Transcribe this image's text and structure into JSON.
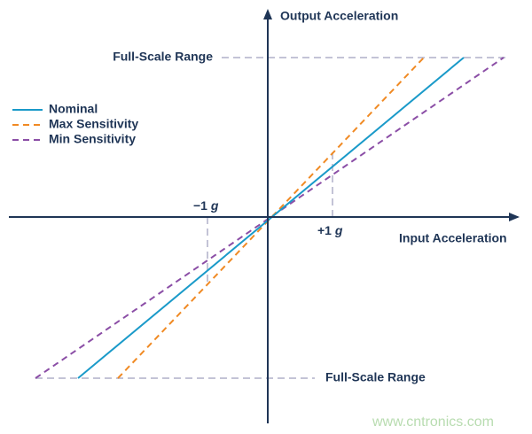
{
  "axes": {
    "y_label": "Output Acceleration",
    "x_label": "Input Acceleration"
  },
  "range_labels": {
    "top": "Full-Scale Range",
    "bottom": "Full-Scale Range"
  },
  "markers": [
    {
      "number": "−1",
      "unit": "g"
    },
    {
      "number": "+1",
      "unit": "g"
    }
  ],
  "legend": [
    {
      "name": "Nominal"
    },
    {
      "name": "Max Sensitivity"
    },
    {
      "name": "Min Sensitivity"
    }
  ],
  "watermark": "www.cntronics.com"
}
